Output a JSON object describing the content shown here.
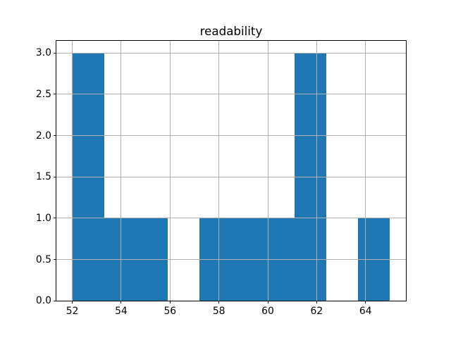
{
  "chart_data": {
    "type": "bar",
    "subtype": "histogram",
    "title": "readability",
    "xlabel": "",
    "ylabel": "",
    "bin_edges": [
      52.0,
      53.3,
      54.6,
      55.9,
      57.2,
      58.5,
      59.8,
      61.1,
      62.4,
      63.7,
      65.0
    ],
    "counts": [
      3,
      1,
      1,
      0,
      1,
      1,
      1,
      3,
      0,
      1
    ],
    "xlim": [
      51.35,
      65.65
    ],
    "ylim": [
      0,
      3.15
    ],
    "xticks": [
      52,
      54,
      56,
      58,
      60,
      62,
      64
    ],
    "xtick_labels": [
      "52",
      "54",
      "56",
      "58",
      "60",
      "62",
      "64"
    ],
    "yticks": [
      0.0,
      0.5,
      1.0,
      1.5,
      2.0,
      2.5,
      3.0
    ],
    "ytick_labels": [
      "0.0",
      "0.5",
      "1.0",
      "1.5",
      "2.0",
      "2.5",
      "3.0"
    ],
    "grid": true,
    "grid_over_bars": true,
    "legend": false,
    "colors": {
      "bar": "#1f77b4",
      "grid": "#b0b0b0",
      "spine": "#000000",
      "text": "#000000",
      "background": "#ffffff"
    }
  }
}
